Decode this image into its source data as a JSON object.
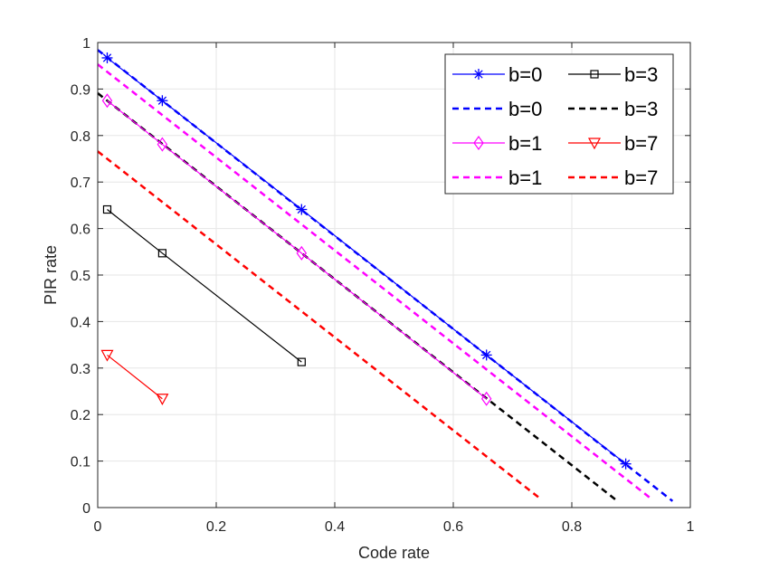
{
  "chart_data": {
    "type": "line",
    "title": "",
    "xlabel": "Code rate",
    "ylabel": "PIR rate",
    "xlim": [
      0,
      1
    ],
    "ylim": [
      0,
      1
    ],
    "grid": true,
    "legend_position": "top-right",
    "x_ticks": [
      "0",
      "0.2",
      "0.4",
      "0.6",
      "0.8",
      "1"
    ],
    "x_tick_values": [
      0,
      0.2,
      0.4,
      0.6,
      0.8,
      1
    ],
    "y_ticks": [
      "0",
      "0.1",
      "0.2",
      "0.3",
      "0.4",
      "0.5",
      "0.6",
      "0.7",
      "0.8",
      "0.9",
      "1"
    ],
    "y_tick_values": [
      0,
      0.1,
      0.2,
      0.3,
      0.4,
      0.5,
      0.6,
      0.7,
      0.8,
      0.9,
      1
    ],
    "series": [
      {
        "name": "b=0",
        "color": "#0000ff",
        "line": "solid",
        "marker": "asterisk",
        "x": [
          0.016,
          0.109,
          0.344,
          0.656,
          0.891
        ],
        "y": [
          0.967,
          0.875,
          0.641,
          0.328,
          0.094
        ]
      },
      {
        "name": "b=0",
        "color": "#0000ff",
        "line": "dashed",
        "marker": "none",
        "x": [
          0,
          0.97
        ],
        "y": [
          0.984,
          0.014
        ]
      },
      {
        "name": "b=1",
        "color": "#ff00ff",
        "line": "solid",
        "marker": "diamond",
        "x": [
          0.016,
          0.109,
          0.344,
          0.656
        ],
        "y": [
          0.875,
          0.781,
          0.547,
          0.234
        ]
      },
      {
        "name": "b=1",
        "color": "#ff00ff",
        "line": "dashed",
        "marker": "none",
        "x": [
          0,
          0.936
        ],
        "y": [
          0.953,
          0.017
        ]
      },
      {
        "name": "b=3",
        "color": "#000000",
        "line": "solid",
        "marker": "square",
        "x": [
          0.016,
          0.109,
          0.344
        ],
        "y": [
          0.641,
          0.547,
          0.313
        ]
      },
      {
        "name": "b=3",
        "color": "#000000",
        "line": "dashed",
        "marker": "none",
        "x": [
          0,
          0.877
        ],
        "y": [
          0.891,
          0.014
        ]
      },
      {
        "name": "b=7",
        "color": "#ff0000",
        "line": "solid",
        "marker": "triangle-down",
        "x": [
          0.016,
          0.109
        ],
        "y": [
          0.328,
          0.234
        ]
      },
      {
        "name": "b=7",
        "color": "#ff0000",
        "line": "dashed",
        "marker": "none",
        "x": [
          0,
          0.745
        ],
        "y": [
          0.766,
          0.021
        ]
      }
    ],
    "legend_order": [
      0,
      4,
      1,
      5,
      2,
      6,
      3,
      7
    ]
  }
}
